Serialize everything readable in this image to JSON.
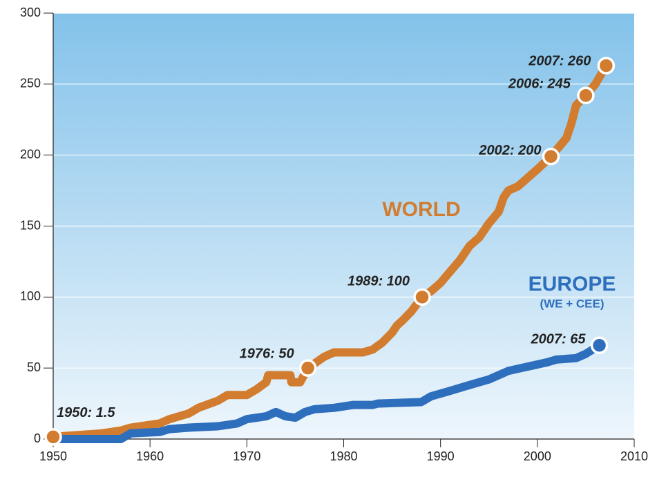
{
  "chart_data": {
    "type": "line",
    "xlim": [
      1950,
      2010
    ],
    "xticks": [
      1950,
      1960,
      1970,
      1980,
      1990,
      2000,
      2010
    ],
    "ylim": [
      0,
      300
    ],
    "yticks": [
      0,
      50,
      100,
      150,
      200,
      250,
      300
    ],
    "grid": true,
    "series": [
      {
        "name": "WORLD",
        "color": "#d27c2f",
        "x": [
          1950,
          1953,
          1955,
          1957,
          1958,
          1960,
          1961,
          1962,
          1964,
          1965,
          1967,
          1968,
          1970,
          1971,
          1972,
          1972.2,
          1974.5,
          1974.6,
          1975.5,
          1976.3,
          1978,
          1979,
          1982,
          1983,
          1984,
          1985,
          1985.5,
          1986,
          1987,
          1988.1,
          1989,
          1990,
          1991,
          1992,
          1993,
          1994,
          1995,
          1996,
          1996.5,
          1997,
          1998,
          1999,
          2000,
          2001.4,
          2003,
          2003.5,
          2004,
          2005,
          2006,
          2007.1
        ],
        "values": [
          1.5,
          3,
          4,
          6,
          8,
          10,
          11,
          14,
          18,
          22,
          27,
          31,
          31,
          35,
          40,
          45,
          45,
          40,
          40,
          50,
          58,
          61,
          61,
          63,
          68,
          75,
          80,
          83,
          90,
          100,
          104,
          110,
          118,
          126,
          136,
          142,
          152,
          160,
          170,
          175,
          178,
          184,
          190,
          199,
          212,
          222,
          235,
          242,
          250,
          263
        ]
      },
      {
        "name": "EUROPE",
        "sublabel": "(WE + CEE)",
        "color": "#2e6fbd",
        "x": [
          1950,
          1957,
          1958,
          1961,
          1962,
          1964,
          1967,
          1969,
          1970,
          1972,
          1973,
          1974,
          1975,
          1976,
          1977,
          1979,
          1981,
          1983,
          1983.5,
          1988,
          1989,
          1991,
          1993,
          1995,
          1996,
          1997,
          1999,
          2001,
          2002,
          2004,
          2005,
          2006.4
        ],
        "values": [
          0,
          0,
          4,
          5,
          7,
          8,
          9,
          11,
          14,
          16,
          19,
          16,
          15,
          19,
          21,
          22,
          24,
          24,
          25,
          26,
          30,
          34,
          38,
          42,
          45,
          48,
          51,
          54,
          56,
          57,
          60,
          66
        ]
      }
    ],
    "annotations": [
      {
        "text": "1950: 1.5",
        "series": 0,
        "x": 1950,
        "y": 1.5
      },
      {
        "text": "1976: 50",
        "series": 0,
        "x": 1976.3,
        "y": 50
      },
      {
        "text": "1989: 100",
        "series": 0,
        "x": 1988.1,
        "y": 100
      },
      {
        "text": "2002: 200",
        "series": 0,
        "x": 2001.4,
        "y": 199
      },
      {
        "text": "2006: 245",
        "series": 0,
        "x": 2005,
        "y": 242
      },
      {
        "text": "2007: 260",
        "series": 0,
        "x": 2007.1,
        "y": 263
      },
      {
        "text": "2007: 65",
        "series": 1,
        "x": 2006.4,
        "y": 66
      }
    ]
  }
}
